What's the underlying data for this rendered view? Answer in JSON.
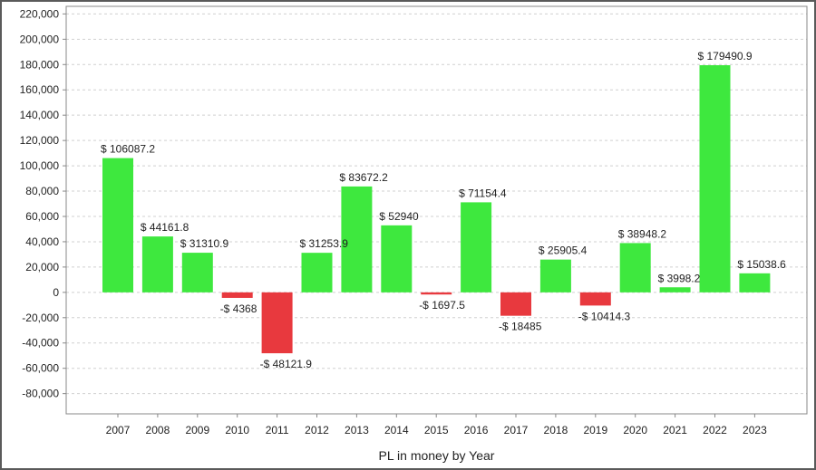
{
  "chart_data": {
    "type": "bar",
    "title": "",
    "xlabel": "PL in money by Year",
    "ylabel": "",
    "categories": [
      "2007",
      "2008",
      "2009",
      "2010",
      "2011",
      "2012",
      "2013",
      "2014",
      "2015",
      "2016",
      "2017",
      "2018",
      "2019",
      "2020",
      "2021",
      "2022",
      "2023"
    ],
    "values": [
      106087.2,
      44161.8,
      31310.9,
      -4368,
      -48121.9,
      31253.9,
      83672.2,
      52940,
      -1697.5,
      71154.4,
      -18485,
      25905.4,
      -10414.3,
      38948.2,
      3998.2,
      179490.9,
      15038.6
    ],
    "data_labels": [
      "$ 106087.2",
      "$ 44161.8",
      "$ 31310.9",
      "-$ 4368",
      "-$ 48121.9",
      "$ 31253.9",
      "$ 83672.2",
      "$ 52940",
      "-$ 1697.5",
      "$ 71154.4",
      "-$ 18485",
      "$ 25905.4",
      "-$ 10414.3",
      "$ 38948.2",
      "$ 3998.2",
      "$ 179490.9",
      "$ 15038.6"
    ],
    "y_ticks": [
      220000,
      200000,
      180000,
      160000,
      140000,
      120000,
      100000,
      80000,
      60000,
      40000,
      20000,
      0,
      -20000,
      -40000,
      -60000,
      -80000
    ],
    "y_tick_labels": [
      "220,000",
      "200,000",
      "180,000",
      "160,000",
      "140,000",
      "120,000",
      "100,000",
      "80,000",
      "60,000",
      "40,000",
      "20,000",
      "0",
      "-20,000",
      "-40,000",
      "-60,000",
      "-80,000"
    ],
    "ylim": [
      -96000,
      226000
    ],
    "grid": true,
    "colors": {
      "positive": "#3ee83e",
      "negative": "#e8393e",
      "grid": "#d0d0d0",
      "axis": "#888888"
    }
  }
}
